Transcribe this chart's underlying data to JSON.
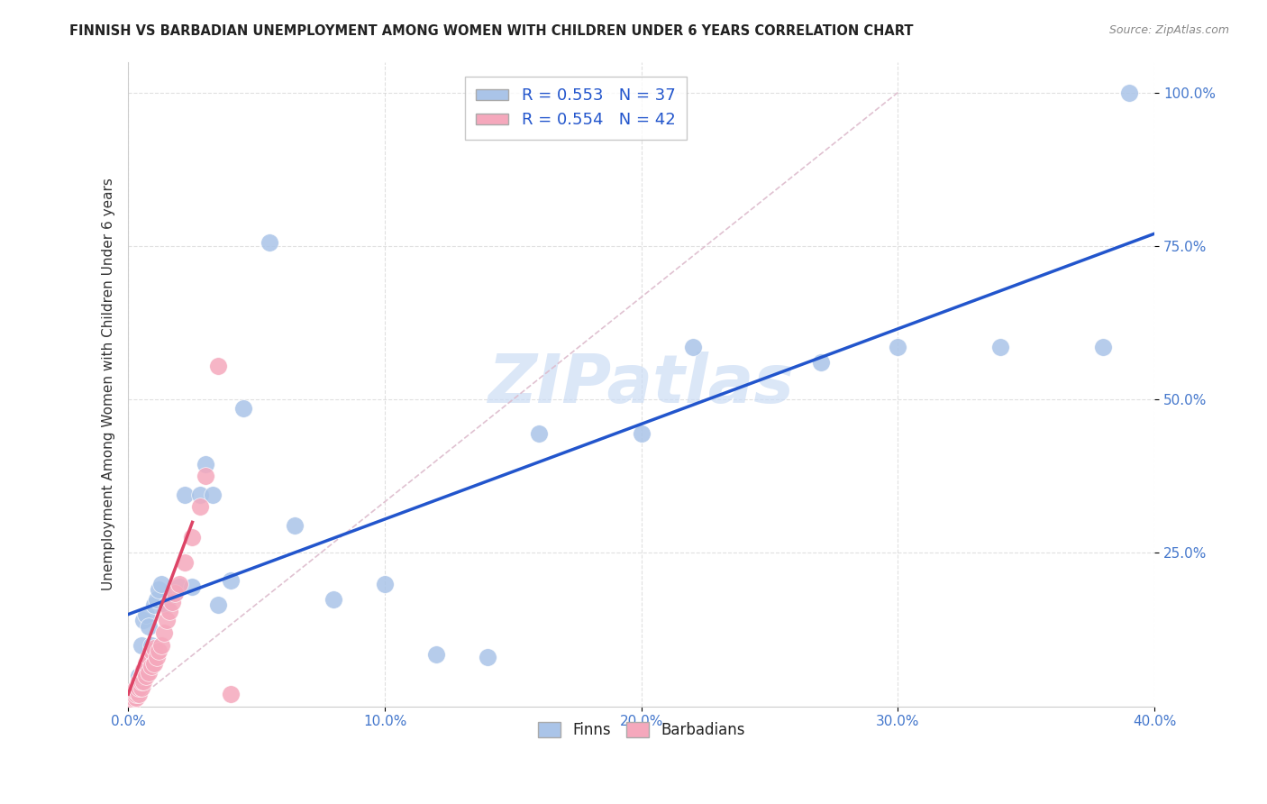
{
  "title": "FINNISH VS BARBADIAN UNEMPLOYMENT AMONG WOMEN WITH CHILDREN UNDER 6 YEARS CORRELATION CHART",
  "source": "Source: ZipAtlas.com",
  "ylabel": "Unemployment Among Women with Children Under 6 years",
  "finn_R": 0.553,
  "finn_N": 37,
  "barb_R": 0.554,
  "barb_N": 42,
  "finn_color": "#aac4e8",
  "barb_color": "#f5a8bc",
  "finn_line_color": "#2255cc",
  "barb_line_color": "#dd4466",
  "diag_color": "#ddbbcc",
  "watermark_color": "#ccddf5",
  "xlim": [
    0.0,
    0.4
  ],
  "ylim": [
    0.0,
    1.05
  ],
  "xticks": [
    0.0,
    0.1,
    0.2,
    0.3,
    0.4
  ],
  "yticks": [
    0.25,
    0.5,
    0.75,
    1.0
  ],
  "finn_x": [
    0.002,
    0.003,
    0.004,
    0.005,
    0.006,
    0.007,
    0.008,
    0.009,
    0.01,
    0.011,
    0.012,
    0.013,
    0.015,
    0.018,
    0.02,
    0.022,
    0.025,
    0.028,
    0.03,
    0.033,
    0.035,
    0.04,
    0.045,
    0.055,
    0.065,
    0.08,
    0.1,
    0.12,
    0.14,
    0.16,
    0.2,
    0.22,
    0.27,
    0.3,
    0.34,
    0.38,
    0.39
  ],
  "finn_y": [
    0.015,
    0.03,
    0.05,
    0.1,
    0.14,
    0.15,
    0.13,
    0.1,
    0.165,
    0.175,
    0.19,
    0.2,
    0.165,
    0.185,
    0.195,
    0.345,
    0.195,
    0.345,
    0.395,
    0.345,
    0.165,
    0.205,
    0.485,
    0.755,
    0.295,
    0.175,
    0.2,
    0.085,
    0.08,
    0.445,
    0.445,
    0.585,
    0.56,
    0.585,
    0.585,
    0.585,
    1.0
  ],
  "barb_x": [
    0.001,
    0.001,
    0.001,
    0.002,
    0.002,
    0.002,
    0.002,
    0.003,
    0.003,
    0.003,
    0.003,
    0.004,
    0.004,
    0.004,
    0.005,
    0.005,
    0.005,
    0.006,
    0.006,
    0.007,
    0.007,
    0.008,
    0.008,
    0.009,
    0.009,
    0.01,
    0.01,
    0.011,
    0.012,
    0.013,
    0.014,
    0.015,
    0.016,
    0.017,
    0.018,
    0.02,
    0.022,
    0.025,
    0.028,
    0.03,
    0.035,
    0.04
  ],
  "barb_y": [
    0.005,
    0.01,
    0.015,
    0.01,
    0.015,
    0.02,
    0.025,
    0.015,
    0.02,
    0.025,
    0.03,
    0.02,
    0.03,
    0.04,
    0.03,
    0.04,
    0.05,
    0.04,
    0.06,
    0.05,
    0.07,
    0.055,
    0.08,
    0.065,
    0.09,
    0.07,
    0.095,
    0.08,
    0.09,
    0.1,
    0.12,
    0.14,
    0.155,
    0.17,
    0.185,
    0.2,
    0.235,
    0.275,
    0.325,
    0.375,
    0.555,
    0.02
  ]
}
